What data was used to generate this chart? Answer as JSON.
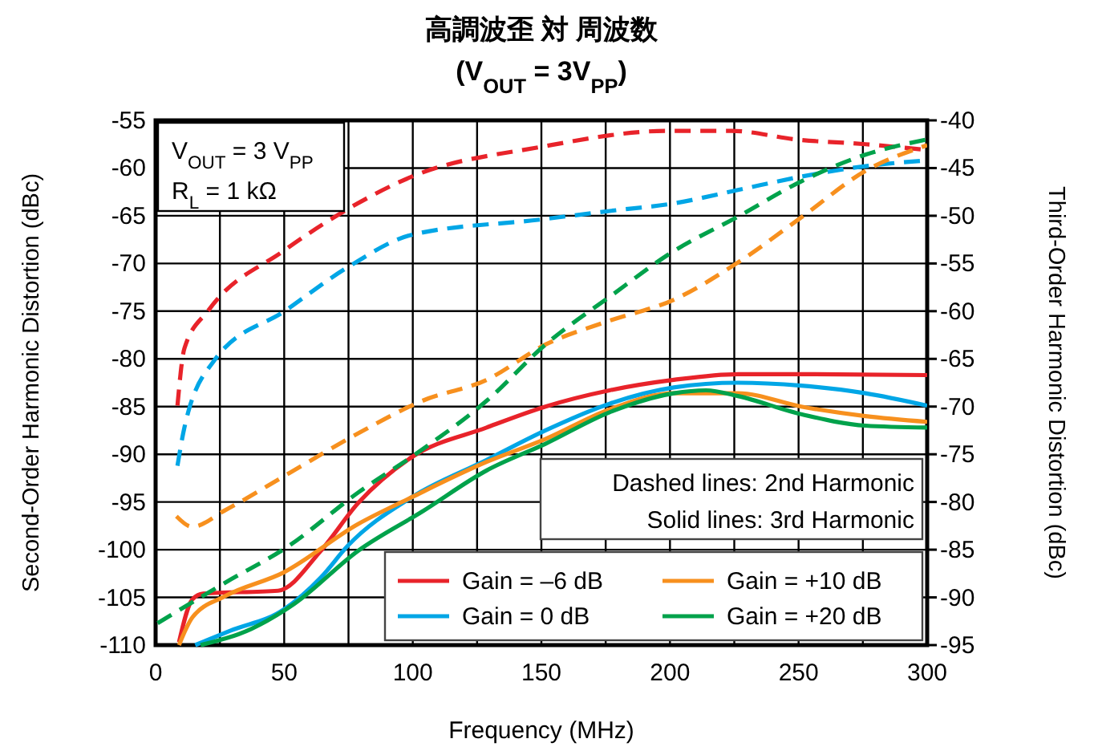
{
  "chart_data": {
    "type": "line",
    "title": "高調波歪 対 周波数",
    "subtitle": "(V$_{OUT}$ = 3V$_{PP}$)",
    "xlabel": "Frequency (MHz)",
    "ylabel": "Second-Order Harmonic Distortion (dBc)",
    "y2label": "Third-Order Harmonic Distortion (dBc)",
    "annotations": [
      "V$_{OUT}$ = 3 V$_{PP}$",
      "R$_{L}$ = 1 kΩ",
      "Dashed lines: 2nd Harmonic",
      "Solid lines: 3rd Harmonic"
    ],
    "xlim": [
      0,
      300
    ],
    "xticks": [
      0,
      {
        "value": 25,
        "label": null
      },
      50,
      {
        "value": 75,
        "label": null
      },
      100,
      {
        "value": 125,
        "label": null
      },
      150,
      {
        "value": 175,
        "label": null
      },
      200,
      {
        "value": 225,
        "label": null
      },
      250,
      {
        "value": 275,
        "label": null
      },
      300
    ],
    "ylim": [
      -110,
      -55
    ],
    "yticks": [
      -110,
      -105,
      -100,
      -95,
      -90,
      -85,
      -80,
      -75,
      -70,
      -65,
      -60,
      -55
    ],
    "y2lim": [
      -95,
      -40
    ],
    "y2ticks": [
      -95,
      -90,
      -85,
      -80,
      -75,
      -70,
      -65,
      -60,
      -55,
      -50,
      -45,
      -40
    ],
    "grid": true,
    "legend": "bottom right",
    "marker": "none",
    "series": [
      {
        "name": "Gain = –6 dB",
        "color": "#e8232a",
        "axis": "y2",
        "line_style": "solid",
        "x": [
          9.1,
          14.3,
          18.5,
          47.6,
          64.3,
          78.8,
          99.6,
          128.7,
          151.6,
          176.5,
          201.5,
          226.4,
          251,
          300
        ],
        "values": [
          -94.7,
          -90.2,
          -89.6,
          -89.3,
          -85.1,
          -80.1,
          -75.3,
          -72.2,
          -70.0,
          -68.3,
          -67.2,
          -66.6,
          -66.6,
          -66.7
        ]
      },
      {
        "name": "Gain = 0 dB",
        "color": "#00a6e6",
        "axis": "y2",
        "line_style": "solid",
        "x": [
          15.4,
          29,
          49.7,
          64.3,
          74.7,
          99.6,
          128.7,
          151.6,
          176.5,
          201.5,
          226.4,
          251,
          276,
          300
        ],
        "values": [
          -95,
          -93.5,
          -91.3,
          -87.9,
          -84.6,
          -79.5,
          -75.6,
          -72.5,
          -69.7,
          -68,
          -67.5,
          -67.8,
          -68.6,
          -69.9
        ]
      },
      {
        "name": "Gain = +10 dB",
        "color": "#f7901e",
        "axis": "y2",
        "line_style": "solid",
        "x": [
          9.1,
          14.3,
          26.8,
          49.7,
          78.8,
          99.6,
          128.7,
          151.6,
          176.5,
          201.5,
          226.4,
          251,
          276,
          300
        ],
        "values": [
          -95,
          -92.1,
          -89.9,
          -87.4,
          -82.3,
          -79.5,
          -75.8,
          -73.4,
          -70.3,
          -68.6,
          -68.6,
          -70.0,
          -71.0,
          -71.6
        ]
      },
      {
        "name": "Gain = +20 dB",
        "color": "#00a24b",
        "axis": "y2",
        "line_style": "solid",
        "x": [
          17.5,
          37.2,
          53.8,
          78.8,
          103.7,
          128.7,
          151.6,
          176.5,
          201.5,
          214,
          226.4,
          251,
          276,
          300
        ],
        "values": [
          -95,
          -93.3,
          -90.7,
          -85.1,
          -81.0,
          -76.7,
          -73.9,
          -70.6,
          -68.6,
          -68.3,
          -68.9,
          -70.8,
          -72.0,
          -72.2
        ]
      },
      {
        "color": "#e8232a",
        "line_style": "dashed",
        "x": [
          8.5,
          11.2,
          20.6,
          49.7,
          74.7,
          99.6,
          149.5,
          199.4,
          224,
          249,
          276,
          300
        ],
        "values": [
          -84.9,
          -78.9,
          -74.9,
          -68.7,
          -64.3,
          -60.9,
          -57.8,
          -56.1,
          -56.1,
          -57,
          -57.5,
          -58.1
        ]
      },
      {
        "color": "#00a6e6",
        "line_style": "dashed",
        "x": [
          8.5,
          11.2,
          22.7,
          50.7,
          74.7,
          99.6,
          149.5,
          176.5,
          201.5,
          226.4,
          251,
          276,
          300
        ],
        "values": [
          -91.2,
          -87.2,
          -80.2,
          -74.9,
          -70.4,
          -67.0,
          -65.4,
          -64.5,
          -63.7,
          -62.3,
          -60.9,
          -59.8,
          -59.2
        ]
      },
      {
        "color": "#f7901e",
        "line_style": "dashed",
        "x": [
          8.1,
          14.3,
          26.8,
          51.8,
          78.8,
          103.7,
          128.7,
          151.6,
          176.5,
          201.5,
          226.4,
          251.4,
          276,
          300
        ],
        "values": [
          -96.5,
          -97.6,
          -95.9,
          -92.0,
          -87.8,
          -84.4,
          -82.2,
          -78.5,
          -76.0,
          -73.8,
          -69.9,
          -65.1,
          -60.3,
          -57.6
        ]
      },
      {
        "color": "#00a24b",
        "line_style": "dashed",
        "x": [
          0.8,
          26.8,
          51.8,
          78.8,
          103.7,
          128.7,
          151.6,
          176.5,
          201.5,
          226.4,
          251,
          276,
          300
        ],
        "values": [
          -107.7,
          -103.5,
          -99.6,
          -94.0,
          -89.5,
          -84.4,
          -78.5,
          -73.5,
          -68.7,
          -65.1,
          -61.4,
          -58.6,
          -57.0
        ]
      }
    ]
  }
}
